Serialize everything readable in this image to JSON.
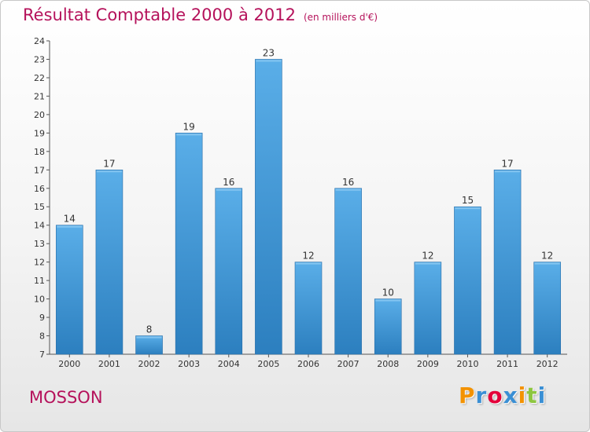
{
  "header": {
    "title": "Résultat Comptable 2000 à 2012",
    "subtitle": "(en milliers d'€)"
  },
  "commune": "MOSSON",
  "logo": {
    "letters": [
      "P",
      "r",
      "o",
      "x",
      "i",
      "t",
      "i"
    ],
    "colors": [
      "#f39200",
      "#3a8fd4",
      "#e4003a",
      "#3a8fd4",
      "#f39200",
      "#8dc63f",
      "#3a8fd4"
    ]
  },
  "chart_data": {
    "type": "bar",
    "title": "Résultat Comptable 2000 à 2012",
    "categories": [
      "2000",
      "2001",
      "2002",
      "2003",
      "2004",
      "2005",
      "2006",
      "2007",
      "2008",
      "2009",
      "2010",
      "2011",
      "2012"
    ],
    "values": [
      14,
      17,
      8,
      19,
      16,
      23,
      12,
      16,
      10,
      12,
      15,
      17,
      12
    ],
    "ylim": [
      7,
      24
    ],
    "yticks": [
      7,
      8,
      9,
      10,
      11,
      12,
      13,
      14,
      15,
      16,
      17,
      18,
      19,
      20,
      21,
      22,
      23,
      24
    ],
    "grid": false,
    "legend": "none",
    "bar_color_top": "#5aaee8",
    "bar_color_bottom": "#2c7fbf"
  }
}
